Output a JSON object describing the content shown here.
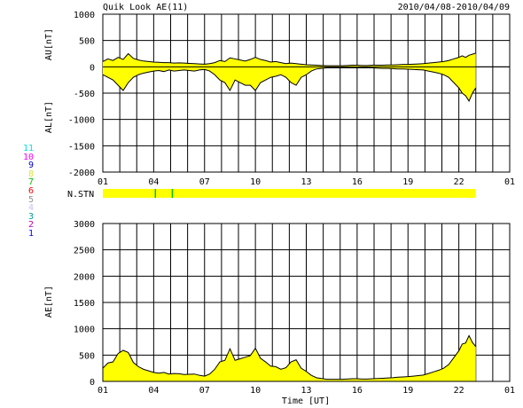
{
  "header": {
    "title": "Quik Look AE(11)",
    "date_range": "2010/04/08-2010/04/09"
  },
  "station_legend": {
    "items": [
      {
        "label": "11",
        "color": "#00e0e0"
      },
      {
        "label": "10",
        "color": "#ff00ff"
      },
      {
        "label": "9",
        "color": "#0000c0"
      },
      {
        "label": "8",
        "color": "#e0e040"
      },
      {
        "label": "7",
        "color": "#00c000"
      },
      {
        "label": "6",
        "color": "#ff0000"
      },
      {
        "label": "5",
        "color": "#909090"
      },
      {
        "label": "4",
        "color": "#c0c0ff"
      },
      {
        "label": "3",
        "color": "#00a0a0"
      },
      {
        "label": "2",
        "color": "#c000c0"
      },
      {
        "label": "1",
        "color": "#0000ff"
      }
    ]
  },
  "colors": {
    "fill": "#ffff00",
    "line": "#000000",
    "station_green": "#00c000"
  },
  "chart_data": [
    {
      "type": "area",
      "name": "AU/AL",
      "ylabel_top": "AU[nT]",
      "ylabel_bottom": "AL[nT]",
      "ylim": [
        -2000,
        1000
      ],
      "yticks": [
        1000,
        500,
        0,
        -500,
        -1000,
        -1500,
        -2000
      ],
      "xlim": [
        1,
        25
      ],
      "xticks": [
        "01",
        "04",
        "07",
        "10",
        "13",
        "16",
        "19",
        "22",
        "01"
      ],
      "grid": true,
      "x": [
        1,
        1.3,
        1.6,
        1.9,
        2.2,
        2.5,
        2.8,
        3.1,
        3.4,
        3.7,
        4.0,
        4.3,
        4.6,
        4.9,
        5.2,
        5.5,
        5.8,
        6.1,
        6.4,
        6.7,
        7.0,
        7.3,
        7.6,
        7.9,
        8.2,
        8.5,
        8.8,
        9.1,
        9.4,
        9.7,
        10.0,
        10.3,
        10.6,
        10.9,
        11.2,
        11.5,
        11.8,
        12.1,
        12.4,
        12.7,
        13.0,
        13.3,
        13.6,
        13.9,
        14.2,
        14.5,
        14.8,
        15.1,
        15.4,
        15.7,
        16.0,
        16.3,
        16.6,
        16.9,
        17.2,
        17.5,
        17.8,
        18.1,
        18.4,
        18.7,
        19.0,
        19.3,
        19.6,
        19.9,
        20.2,
        20.5,
        20.8,
        21.1,
        21.4,
        21.7,
        22.0,
        22.2,
        22.4,
        22.6,
        22.8,
        23.0
      ],
      "au": [
        100,
        150,
        120,
        180,
        140,
        250,
        160,
        130,
        110,
        100,
        90,
        85,
        80,
        80,
        70,
        75,
        70,
        65,
        60,
        55,
        50,
        60,
        80,
        120,
        100,
        170,
        150,
        130,
        110,
        140,
        180,
        140,
        120,
        90,
        100,
        80,
        60,
        70,
        60,
        50,
        40,
        35,
        30,
        25,
        20,
        20,
        20,
        20,
        25,
        30,
        30,
        25,
        25,
        30,
        30,
        30,
        35,
        35,
        40,
        45,
        45,
        50,
        55,
        60,
        70,
        80,
        90,
        100,
        120,
        150,
        180,
        210,
        180,
        220,
        240,
        260
      ],
      "al": [
        -150,
        -200,
        -250,
        -350,
        -450,
        -300,
        -200,
        -150,
        -120,
        -100,
        -80,
        -70,
        -90,
        -60,
        -80,
        -70,
        -60,
        -70,
        -80,
        -60,
        -50,
        -80,
        -150,
        -250,
        -300,
        -450,
        -250,
        -300,
        -350,
        -350,
        -450,
        -300,
        -250,
        -200,
        -180,
        -150,
        -200,
        -300,
        -350,
        -200,
        -150,
        -80,
        -40,
        -30,
        -20,
        -20,
        -20,
        -20,
        -20,
        -20,
        -20,
        -20,
        -20,
        -20,
        -25,
        -30,
        -30,
        -35,
        -40,
        -40,
        -45,
        -50,
        -55,
        -60,
        -80,
        -100,
        -120,
        -150,
        -200,
        -300,
        -400,
        -500,
        -550,
        -650,
        -500,
        -400
      ]
    },
    {
      "type": "bar",
      "name": "N.STN",
      "label": "N.STN",
      "xlim": [
        1,
        25
      ],
      "x_start": 1,
      "x_end": 23,
      "markers_x": [
        4.1,
        5.1
      ]
    },
    {
      "type": "area",
      "name": "AE",
      "ylabel": "AE[nT]",
      "xlabel": "Time [UT]",
      "ylim": [
        0,
        3000
      ],
      "yticks": [
        3000,
        2500,
        2000,
        1500,
        1000,
        500,
        0
      ],
      "xlim": [
        1,
        25
      ],
      "xticks": [
        "01",
        "04",
        "07",
        "10",
        "13",
        "16",
        "19",
        "22",
        "01"
      ],
      "grid": true,
      "x": [
        1,
        1.3,
        1.6,
        1.9,
        2.2,
        2.5,
        2.8,
        3.1,
        3.4,
        3.7,
        4.0,
        4.3,
        4.6,
        4.9,
        5.2,
        5.5,
        5.8,
        6.1,
        6.4,
        6.7,
        7.0,
        7.3,
        7.6,
        7.9,
        8.2,
        8.5,
        8.8,
        9.1,
        9.4,
        9.7,
        10.0,
        10.3,
        10.6,
        10.9,
        11.2,
        11.5,
        11.8,
        12.1,
        12.4,
        12.7,
        13.0,
        13.3,
        13.6,
        13.9,
        14.2,
        14.5,
        14.8,
        15.1,
        15.4,
        15.7,
        16.0,
        16.3,
        16.6,
        16.9,
        17.2,
        17.5,
        17.8,
        18.1,
        18.4,
        18.7,
        19.0,
        19.3,
        19.6,
        19.9,
        20.2,
        20.5,
        20.8,
        21.1,
        21.4,
        21.7,
        22.0,
        22.2,
        22.4,
        22.6,
        22.8,
        23.0
      ],
      "ae": [
        250,
        350,
        370,
        530,
        590,
        550,
        360,
        280,
        230,
        200,
        170,
        155,
        170,
        140,
        150,
        145,
        130,
        135,
        140,
        115,
        100,
        140,
        230,
        370,
        400,
        620,
        400,
        430,
        460,
        490,
        630,
        440,
        370,
        290,
        280,
        230,
        260,
        370,
        410,
        250,
        190,
        115,
        70,
        55,
        40,
        40,
        40,
        40,
        45,
        50,
        50,
        45,
        45,
        50,
        55,
        60,
        65,
        70,
        80,
        85,
        90,
        100,
        110,
        120,
        150,
        180,
        210,
        250,
        320,
        450,
        580,
        710,
        730,
        870,
        740,
        660
      ]
    }
  ]
}
